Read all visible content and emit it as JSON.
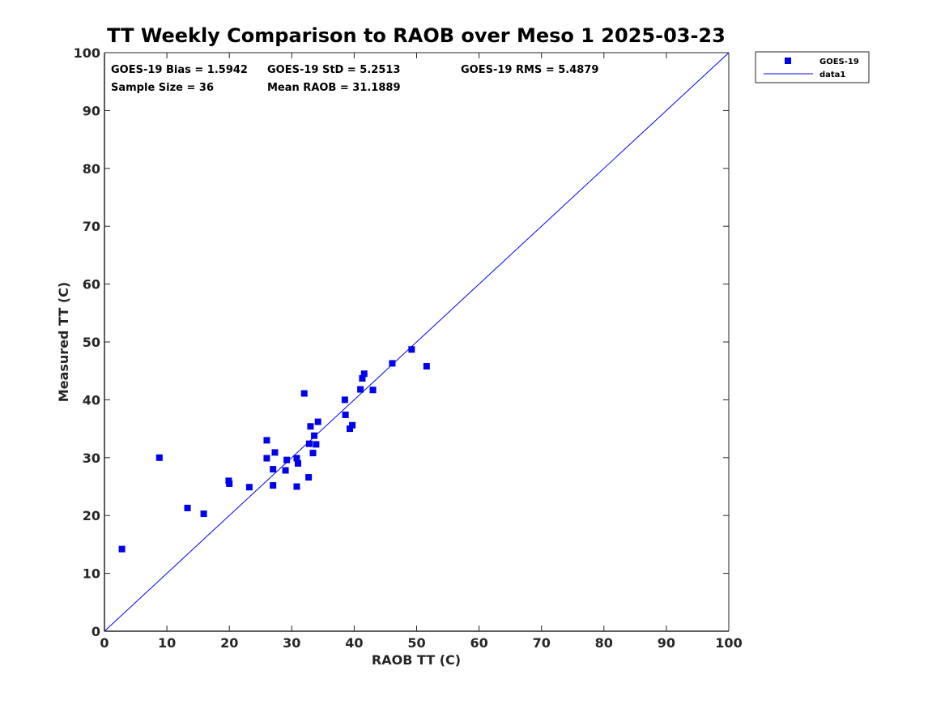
{
  "chart_data": {
    "type": "scatter",
    "title": "TT Weekly Comparison to RAOB over Meso 1 2025-03-23",
    "xlabel": "RAOB TT (C)",
    "ylabel": "Measured TT (C)",
    "xlim": [
      0,
      100
    ],
    "ylim": [
      0,
      100
    ],
    "xticks": [
      "0",
      "10",
      "20",
      "30",
      "40",
      "50",
      "60",
      "70",
      "80",
      "90",
      "100"
    ],
    "yticks": [
      "0",
      "10",
      "20",
      "30",
      "40",
      "50",
      "60",
      "70",
      "80",
      "90",
      "100"
    ],
    "grid": false,
    "legend_position": "outside-top-right",
    "colors": {
      "series": "#0000ee",
      "axis": "#262626"
    },
    "annotations": {
      "bias": "GOES-19 Bias = 1.5942",
      "std": "GOES-19 StD = 5.2513",
      "rms": "GOES-19 RMS = 5.4879",
      "sample": "Sample Size = 36",
      "mean": "Mean RAOB = 31.1889"
    },
    "series": [
      {
        "name": "GOES-19",
        "marker": "square",
        "x": [
          2.8,
          8.8,
          13.3,
          15.9,
          19.9,
          20.0,
          23.2,
          26.0,
          26.0,
          27.0,
          27.0,
          27.3,
          29.0,
          29.2,
          30.8,
          30.8,
          31.0,
          32.0,
          32.7,
          32.8,
          33.0,
          33.4,
          33.6,
          33.9,
          34.2,
          38.5,
          38.6,
          39.3,
          39.7,
          41.0,
          41.3,
          41.6,
          43.0,
          46.1,
          49.2,
          51.6
        ],
        "y": [
          14.2,
          30.0,
          21.3,
          20.3,
          26.0,
          25.5,
          24.9,
          33.0,
          29.9,
          28.0,
          25.2,
          30.9,
          27.8,
          29.6,
          29.9,
          25.0,
          29.0,
          41.1,
          26.6,
          32.4,
          35.4,
          30.8,
          33.8,
          32.3,
          36.2,
          40.0,
          37.4,
          35.0,
          35.6,
          41.8,
          43.7,
          44.5,
          41.7,
          46.3,
          48.7,
          45.8
        ]
      },
      {
        "name": "data1",
        "type": "line",
        "x": [
          0,
          100
        ],
        "y": [
          0,
          100
        ]
      }
    ]
  }
}
